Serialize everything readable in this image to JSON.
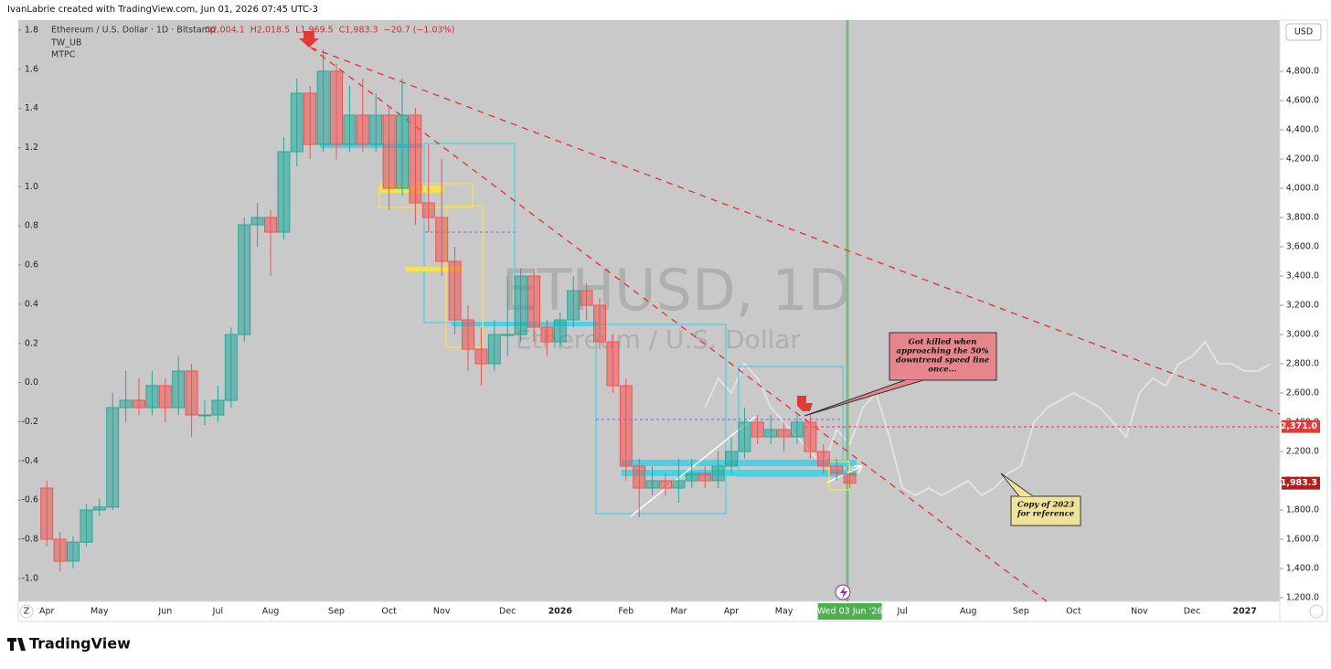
{
  "header": "IvanLabrie created with TradingView.com, Jun 01, 2026 07:45 UTC-3",
  "footer": "TradingView",
  "currency_button": "USD",
  "zoom_button": "Z",
  "chart_data": {
    "type": "candlestick",
    "symbol_line": "Ethereum / U.S. Dollar · 1D · Bitstamp",
    "ohlc_legend": [
      "O2,004.1",
      "H2,018.5",
      "L1,969.5",
      "C1,983.3",
      "−20.7 (−1.03%)"
    ],
    "indicators": [
      "TW_UB",
      "MTPC"
    ],
    "watermark": [
      "ETHUSD, 1D",
      "Ethereum / U.S. Dollar"
    ],
    "annotations": [
      {
        "lines": [
          "Got killed when",
          "approaching the 50%",
          "downtrend speed line",
          "once..."
        ]
      },
      {
        "lines": [
          "Copy of 2023",
          "for reference"
        ]
      }
    ],
    "up_color": "#26a69a",
    "down_color": "#ef5350",
    "reference_color": "#e6e6e6",
    "categories": [
      "Apr",
      null,
      null,
      null,
      "May",
      null,
      null,
      null,
      null,
      "Jun",
      null,
      null,
      null,
      "Jul",
      null,
      null,
      null,
      "Aug",
      null,
      null,
      null,
      null,
      "Sep",
      null,
      null,
      null,
      "Oct",
      null,
      null,
      null,
      "Nov",
      null,
      null,
      null,
      null,
      "Dec",
      null,
      null,
      null,
      "2026",
      null,
      null,
      null,
      null,
      "Feb",
      null,
      null,
      null,
      "Mar",
      null,
      null,
      null,
      "Apr",
      null,
      null,
      null,
      "May",
      null,
      null,
      null,
      null,
      "Wed 03 Jun '26",
      null,
      null,
      null,
      "Jul",
      null,
      null,
      null,
      null,
      "Aug",
      null,
      null,
      null,
      "Sep",
      null,
      null,
      null,
      "Oct",
      null,
      null,
      null,
      null,
      "Nov",
      null,
      null,
      null,
      "Dec",
      null,
      null,
      null,
      "2027",
      null,
      null
    ],
    "highlight_category": 61,
    "open": [
      1950,
      1600,
      1450,
      1580,
      1800,
      1820,
      2500,
      2550,
      2500,
      2650,
      2500,
      2750,
      2450,
      2450,
      2550,
      3000,
      3750,
      3800,
      3700,
      4250,
      4650,
      4300,
      4800,
      4300,
      4500,
      4300,
      4500,
      4000,
      4500,
      3900,
      3800,
      3500,
      3100,
      2900,
      2800,
      3000,
      3000,
      3400,
      3050,
      2950,
      3100,
      3300,
      3200,
      2950,
      2650,
      2100,
      1950,
      2000,
      1950,
      2000,
      2050,
      2000,
      2100,
      2200,
      2400,
      2300,
      2350,
      2300,
      2400,
      2200,
      2100,
      2050,
      null,
      null,
      null,
      null,
      null,
      null,
      null,
      null,
      null,
      null,
      null,
      null,
      null,
      null,
      null,
      null,
      null,
      null,
      null,
      null,
      null,
      null,
      null,
      null,
      null,
      null,
      null,
      null,
      null,
      null,
      null,
      null
    ],
    "high": [
      2000,
      1650,
      1620,
      1840,
      1880,
      2600,
      2750,
      2700,
      2750,
      2700,
      2850,
      2800,
      2550,
      2650,
      3050,
      3800,
      3900,
      3850,
      4350,
      4750,
      4700,
      4950,
      4850,
      4700,
      4750,
      4650,
      4550,
      4750,
      4550,
      4300,
      4200,
      3600,
      3200,
      3050,
      3100,
      3400,
      3450,
      3450,
      3100,
      3150,
      3400,
      3350,
      3250,
      3000,
      2700,
      2150,
      2100,
      2050,
      2150,
      2150,
      2100,
      2200,
      2300,
      2500,
      2450,
      2450,
      2400,
      2450,
      2450,
      2250,
      2150,
      2050,
      null,
      null,
      null,
      null,
      null,
      null,
      null,
      null,
      null,
      null,
      null,
      null,
      null,
      null,
      null,
      null,
      null,
      null,
      null,
      null,
      null,
      null,
      null,
      null,
      null,
      null,
      null,
      null,
      null,
      null,
      null,
      null
    ],
    "low": [
      1550,
      1380,
      1400,
      1550,
      1760,
      1800,
      2400,
      2450,
      2450,
      2400,
      2450,
      2300,
      2380,
      2400,
      2500,
      2950,
      3600,
      3400,
      3650,
      4150,
      4200,
      4250,
      4200,
      4250,
      4250,
      4250,
      3850,
      3950,
      3750,
      3700,
      3400,
      3000,
      2750,
      2650,
      2750,
      2850,
      2950,
      2950,
      2850,
      2900,
      3050,
      3100,
      2900,
      2600,
      2000,
      1750,
      1900,
      1900,
      1850,
      1950,
      1950,
      1950,
      2050,
      2150,
      2250,
      2250,
      2200,
      2250,
      2150,
      2050,
      2000,
      1950,
      null,
      null,
      null,
      null,
      null,
      null,
      null,
      null,
      null,
      null,
      null,
      null,
      null,
      null,
      null,
      null,
      null,
      null,
      null,
      null,
      null,
      null,
      null,
      null,
      null,
      null,
      null,
      null,
      null,
      null,
      null,
      null
    ],
    "close": [
      1600,
      1450,
      1580,
      1800,
      1820,
      2500,
      2550,
      2500,
      2650,
      2500,
      2750,
      2450,
      2450,
      2550,
      3000,
      3750,
      3800,
      3700,
      4250,
      4650,
      4300,
      4800,
      4300,
      4500,
      4300,
      4500,
      4000,
      4500,
      3900,
      3800,
      3500,
      3100,
      2900,
      2800,
      3000,
      3000,
      3400,
      3050,
      2950,
      3100,
      3300,
      3200,
      2950,
      2650,
      2100,
      1950,
      2000,
      1950,
      2000,
      2050,
      2000,
      2100,
      2200,
      2400,
      2300,
      2350,
      2300,
      2400,
      2200,
      2100,
      2050,
      1983.3,
      null,
      null,
      null,
      null,
      null,
      null,
      null,
      null,
      null,
      null,
      null,
      null,
      null,
      null,
      null,
      null,
      null,
      null,
      null,
      null,
      null,
      null,
      null,
      null,
      null,
      null,
      null,
      null,
      null,
      null,
      null,
      null
    ],
    "reference_copy": [
      null,
      null,
      null,
      null,
      null,
      null,
      null,
      null,
      null,
      null,
      null,
      null,
      null,
      null,
      null,
      null,
      null,
      null,
      null,
      null,
      null,
      null,
      null,
      null,
      null,
      null,
      null,
      null,
      null,
      null,
      null,
      null,
      null,
      null,
      null,
      null,
      null,
      null,
      null,
      null,
      null,
      null,
      null,
      null,
      null,
      null,
      null,
      null,
      null,
      null,
      2500,
      2700,
      2600,
      2800,
      2700,
      2500,
      2400,
      2300,
      2200,
      2100,
      2350,
      2250,
      2500,
      2600,
      2300,
      1950,
      1900,
      1950,
      1900,
      1950,
      2000,
      1900,
      1950,
      2050,
      2100,
      2400,
      2500,
      2550,
      2600,
      2550,
      2500,
      2400,
      2300,
      2600,
      2700,
      2650,
      2800,
      2850,
      2950,
      2800,
      2800,
      2750,
      2750,
      2800
    ],
    "ylim": [
      1175,
      5150
    ],
    "yticks": [
      {
        "value": 1200,
        "label": "1,200.0"
      },
      {
        "value": 1400,
        "label": "1,400.0"
      },
      {
        "value": 1600,
        "label": "1,600.0"
      },
      {
        "value": 1800,
        "label": "1,800.0"
      },
      {
        "value": 2000,
        "label": "2,000.0"
      },
      {
        "value": 2200,
        "label": "2,200.0"
      },
      {
        "value": 2400,
        "label": "2,400.0"
      },
      {
        "value": 2600,
        "label": "2,600.0"
      },
      {
        "value": 2800,
        "label": "2,800.0"
      },
      {
        "value": 3000,
        "label": "3,000.0"
      },
      {
        "value": 3200,
        "label": "3,200.0"
      },
      {
        "value": 3400,
        "label": "3,400.0"
      },
      {
        "value": 3600,
        "label": "3,600.0"
      },
      {
        "value": 3800,
        "label": "3,800.0"
      },
      {
        "value": 4000,
        "label": "4,000.0"
      },
      {
        "value": 4200,
        "label": "4,200.0"
      },
      {
        "value": 4400,
        "label": "4,400.0"
      },
      {
        "value": 4600,
        "label": "4,600.0"
      },
      {
        "value": 4800,
        "label": "4,800.0"
      }
    ],
    "price_tags": [
      {
        "value": 2371,
        "label": "2,371.0"
      },
      {
        "value": 1983.3,
        "label": "1,983.3"
      }
    ],
    "y2lim": [
      -1.117,
      1.851
    ],
    "y2ticks": [
      1.8,
      1.6,
      1.4,
      1.2,
      {
        "value": 1,
        "label": "1.0"
      },
      0.8,
      0.6,
      0.4,
      0.2,
      {
        "value": 0,
        "label": "0.0"
      },
      -0.2,
      -0.4,
      -0.6,
      -0.8,
      {
        "value": -1,
        "label": "-1.0"
      }
    ]
  }
}
